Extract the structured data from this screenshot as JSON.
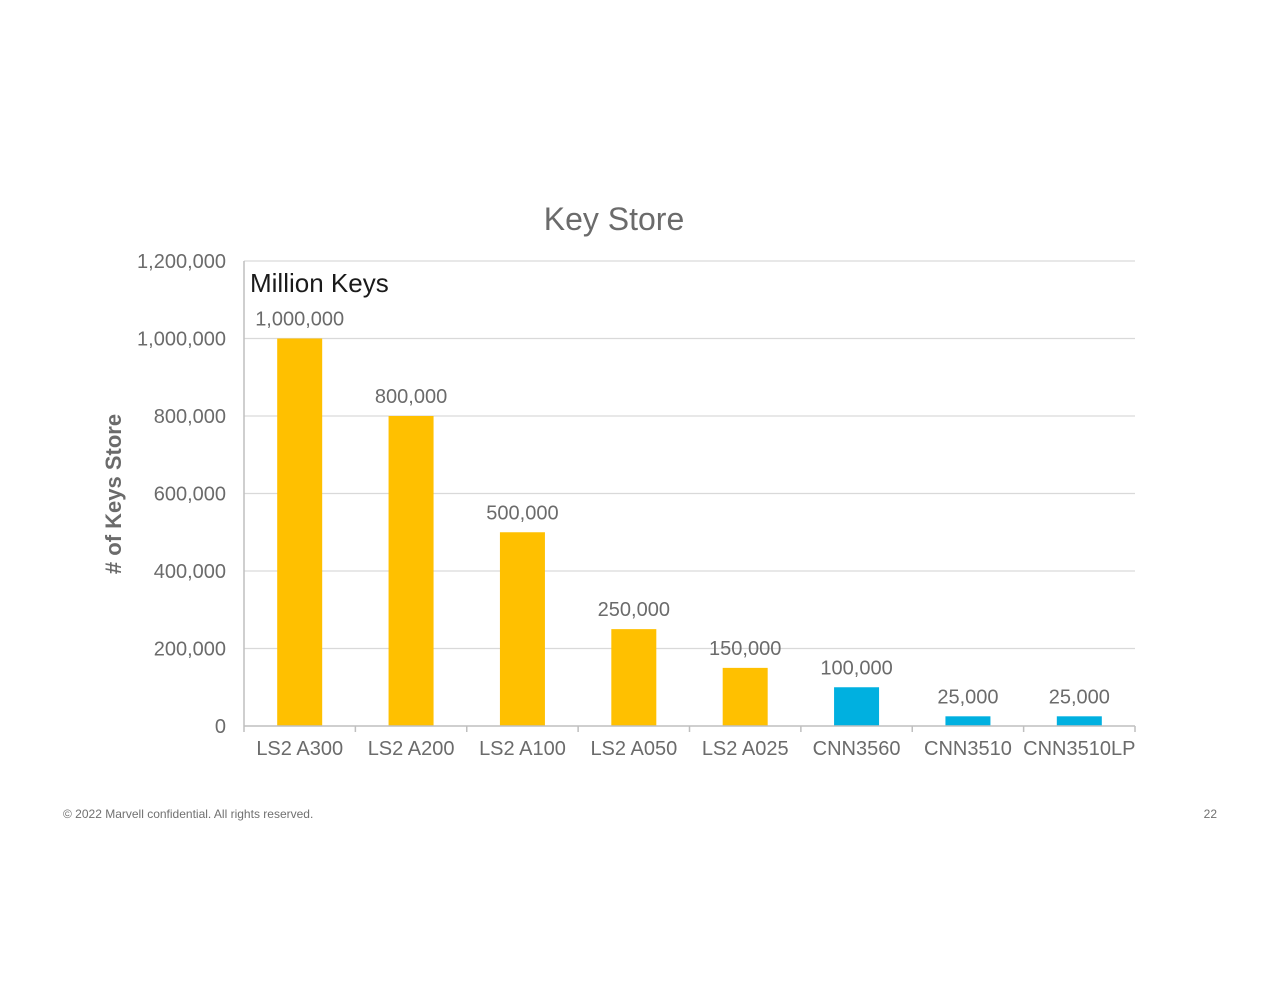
{
  "chart_data": {
    "type": "bar",
    "title": "Key Store",
    "ylabel": "# of Keys Store",
    "xlabel": "",
    "annotation": "Million Keys",
    "categories": [
      "LS2 A300",
      "LS2 A200",
      "LS2 A100",
      "LS2 A050",
      "LS2 A025",
      "CNN3560",
      "CNN3510",
      "CNN3510LP"
    ],
    "values": [
      1000000,
      800000,
      500000,
      250000,
      150000,
      100000,
      25000,
      25000
    ],
    "data_labels": [
      "1,000,000",
      "800,000",
      "500,000",
      "250,000",
      "150,000",
      "100,000",
      "25,000",
      "25,000"
    ],
    "bar_colors": [
      "#FFC000",
      "#FFC000",
      "#FFC000",
      "#FFC000",
      "#FFC000",
      "#00B0E0",
      "#00B0E0",
      "#00B0E0"
    ],
    "ylim": [
      0,
      1200000
    ],
    "yticks": [
      0,
      200000,
      400000,
      600000,
      800000,
      1000000,
      1200000
    ],
    "ytick_labels": [
      "0",
      "200,000",
      "400,000",
      "600,000",
      "800,000",
      "1,000,000",
      "1,200,000"
    ],
    "grid": true,
    "legend": "none"
  },
  "footer": {
    "copyright": "© 2022 Marvell confidential. All rights reserved.",
    "page_number": "22"
  }
}
